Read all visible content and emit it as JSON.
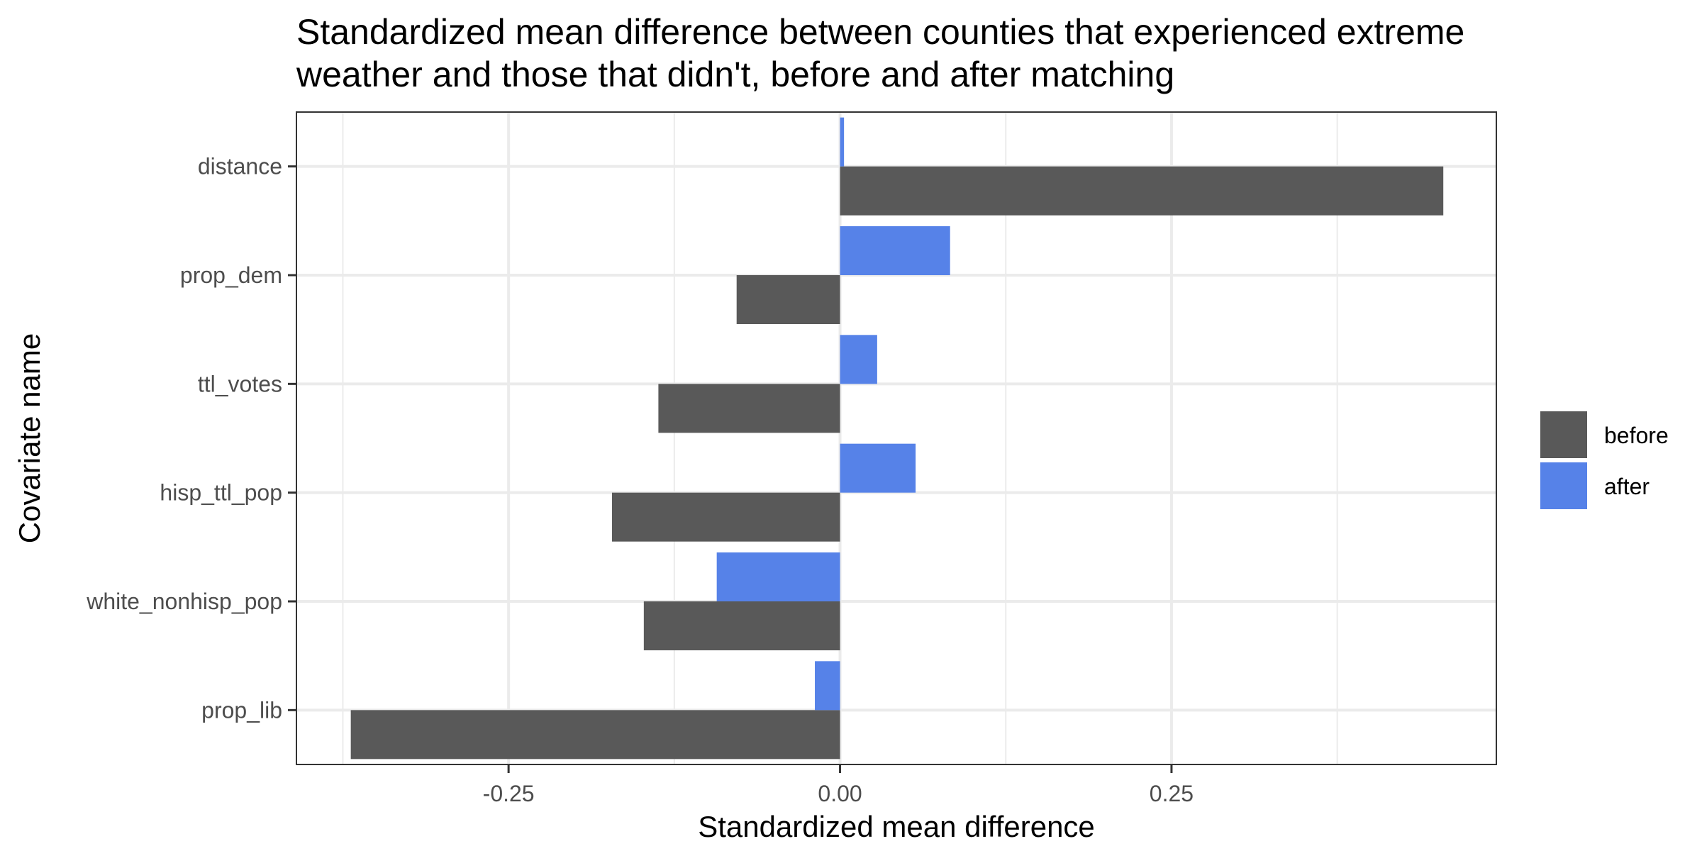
{
  "chart_data": {
    "type": "bar",
    "orientation": "horizontal",
    "title": "Standardized mean difference between counties that experienced extreme weather and those that didn't, before and after matching",
    "title_lines": [
      "Standardized mean difference between counties that experienced extreme",
      "weather and those that didn't, before and after matching"
    ],
    "xlabel": "Standardized mean difference",
    "ylabel": "Covariate name",
    "categories": [
      "distance",
      "prop_dem",
      "ttl_votes",
      "hisp_ttl_pop",
      "white_nonhisp_pop",
      "prop_lib"
    ],
    "series": [
      {
        "name": "before",
        "color": "#595959",
        "values": [
          0.455,
          -0.078,
          -0.137,
          -0.172,
          -0.148,
          -0.369
        ]
      },
      {
        "name": "after",
        "color": "#5682e8",
        "values": [
          0.003,
          0.083,
          0.028,
          0.057,
          -0.093,
          -0.019
        ]
      }
    ],
    "xlim": [
      -0.41,
      0.495
    ],
    "xticks": [
      -0.25,
      0.0,
      0.25
    ],
    "xtick_labels": [
      "-0.25",
      "0.00",
      "0.25"
    ],
    "grid": true,
    "legend_position": "right"
  }
}
